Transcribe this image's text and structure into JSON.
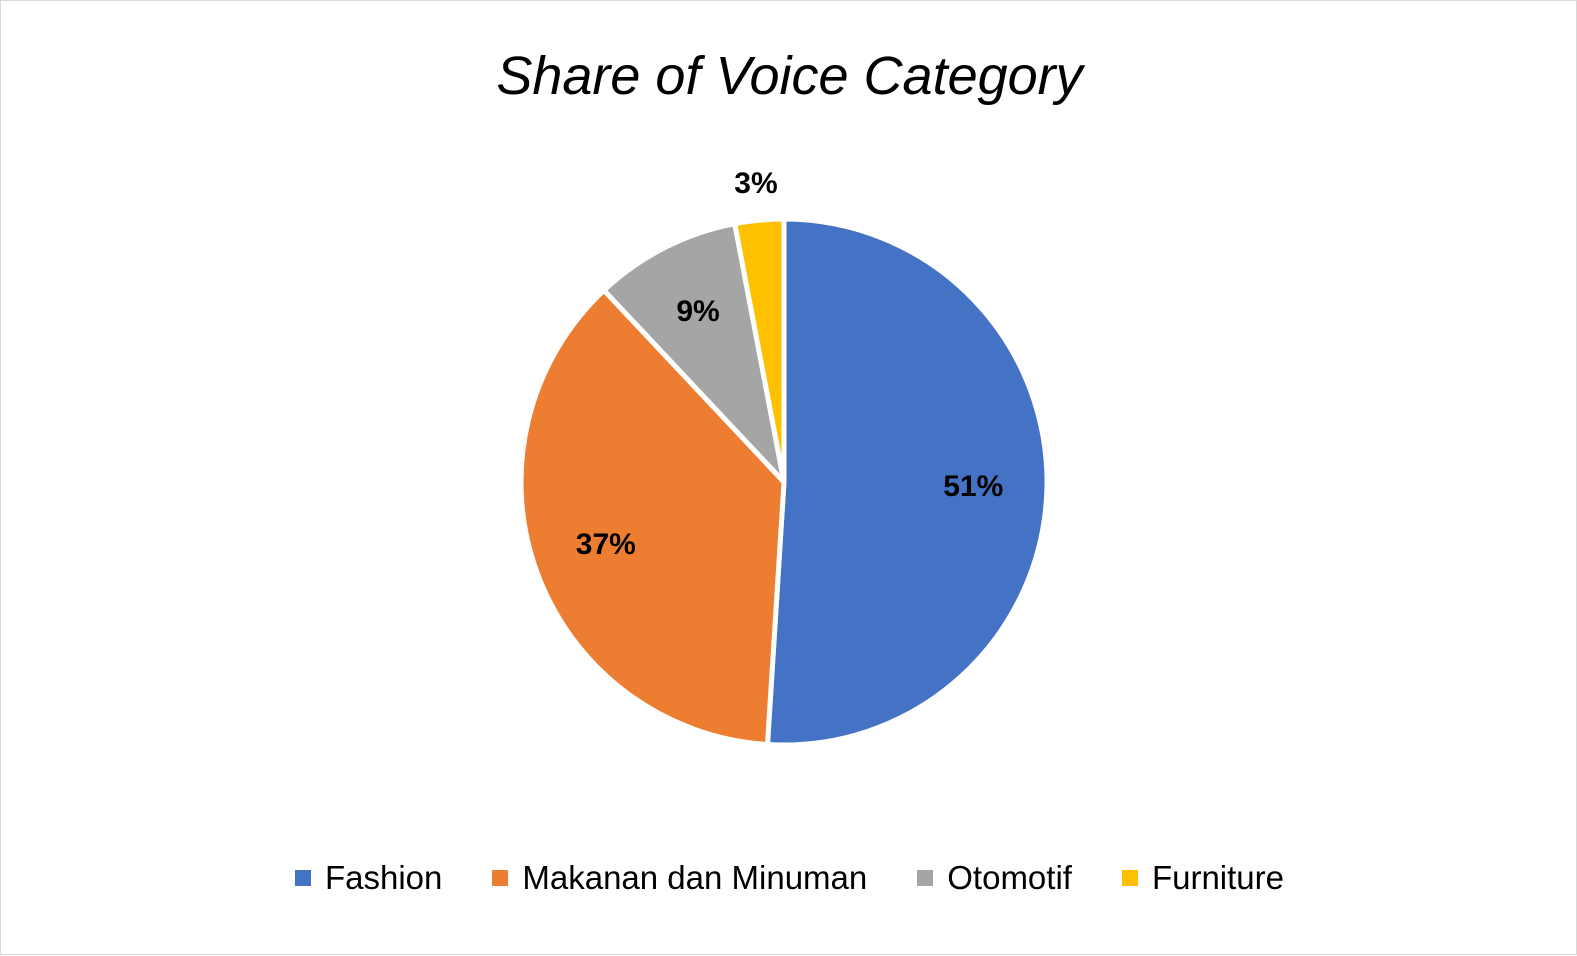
{
  "chart_data": {
    "type": "pie",
    "title": "Share of Voice Category",
    "categories": [
      "Fashion",
      "Makanan dan Minuman",
      "Otomotif",
      "Furniture"
    ],
    "values": [
      51,
      37,
      9,
      3
    ],
    "labels": [
      "51%",
      "37%",
      "9%",
      "3%"
    ],
    "colors": [
      "#4472C4",
      "#ED7D31",
      "#A5A5A5",
      "#FFC000"
    ],
    "legend_position": "bottom",
    "start_angle": "12 o'clock",
    "direction": "clockwise"
  }
}
